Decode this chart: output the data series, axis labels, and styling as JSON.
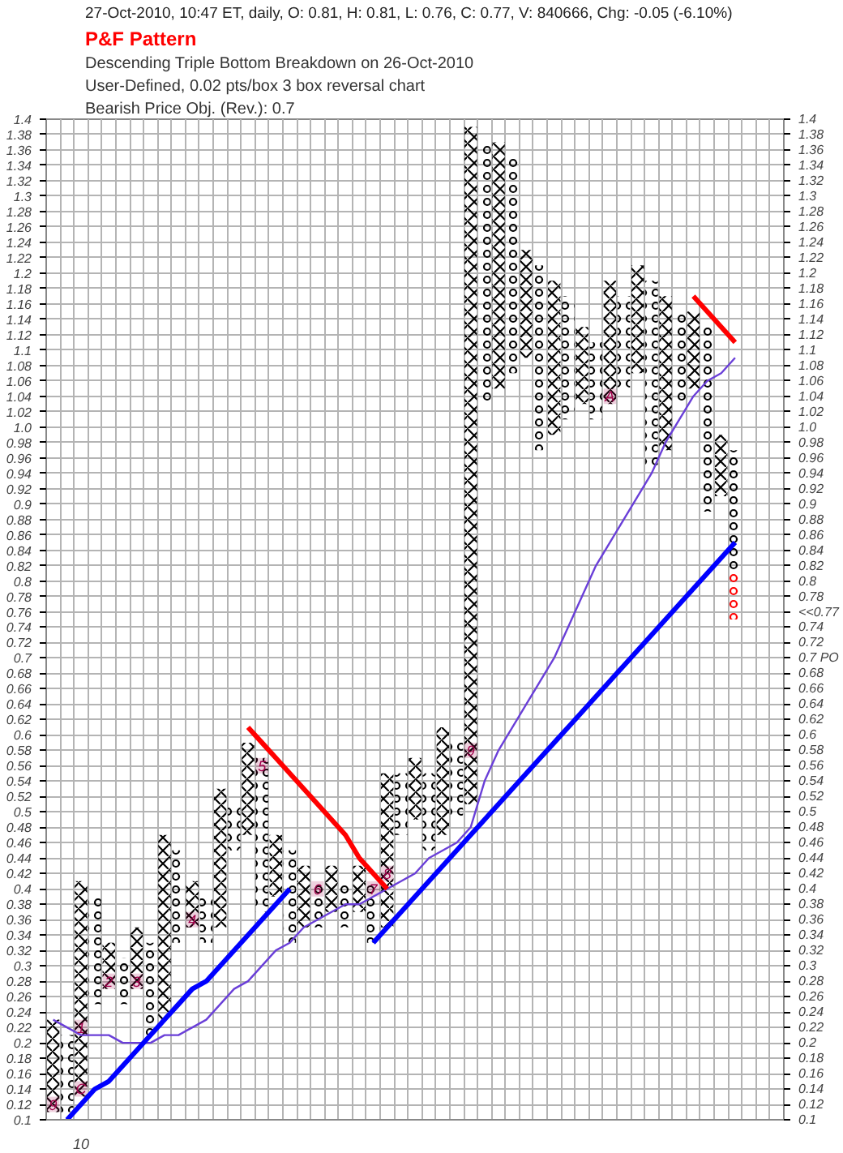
{
  "chart_data": {
    "type": "bar",
    "subtitle": "27-Oct-2010, 10:47 ET, daily, O: 0.81, H: 0.81, L: 0.76, C: 0.77, V: 840666, Chg: -0.05 (-6.10%)",
    "annotations": [
      "P&F Pattern",
      "Descending Triple Bottom Breakdown on 26-Oct-2010",
      "User-Defined, 0.02 pts/box 3 box reversal chart",
      "Bearish Price Obj. (Rev.): 0.7",
      {
        "text": "9",
        "y": 0.12
      },
      {
        "text": "C",
        "y": 0.14
      },
      {
        "text": "1",
        "y": 0.22
      },
      {
        "text": "2",
        "y": 0.28
      },
      {
        "text": "3",
        "y": 0.28
      },
      {
        "text": "4",
        "y": 0.36
      },
      {
        "text": "5",
        "y": 0.56
      },
      {
        "text": "6",
        "y": 0.4
      },
      {
        "text": "7",
        "y": 0.4
      },
      {
        "text": "8",
        "y": 0.42
      },
      {
        "text": "9",
        "y": 0.58
      },
      {
        "text": "A",
        "y": 1.04
      }
    ],
    "categories": [
      null,
      null,
      "10",
      null,
      null,
      null,
      null,
      null,
      null,
      null,
      null,
      null,
      null,
      null,
      null,
      null,
      null,
      null,
      null,
      null,
      null,
      null,
      null,
      null,
      null,
      null,
      null,
      null,
      null,
      null,
      null,
      null,
      null,
      null,
      null,
      null,
      null,
      null,
      null,
      null,
      null,
      null,
      null,
      null,
      null,
      null,
      null,
      null,
      null,
      null,
      null,
      null,
      null
    ],
    "ylim": [
      0.1,
      1.4
    ],
    "yticks": [
      0.1,
      0.12,
      0.14,
      0.16,
      0.18,
      0.2,
      0.22,
      0.24,
      0.26,
      0.28,
      0.3,
      0.32,
      0.34,
      0.36,
      0.38,
      0.4,
      0.42,
      0.44,
      0.46,
      0.48,
      0.5,
      0.52,
      0.54,
      0.56,
      0.58,
      0.6,
      0.62,
      0.64,
      0.66,
      0.68,
      0.7,
      0.72,
      0.74,
      0.76,
      0.78,
      0.8,
      0.82,
      0.84,
      0.86,
      0.88,
      0.9,
      0.92,
      0.94,
      0.96,
      0.98,
      {
        "value": 1,
        "label": "1.0"
      },
      1.02,
      1.04,
      1.06,
      1.08,
      1.1,
      1.12,
      1.14,
      1.16,
      1.18,
      1.2,
      1.22,
      1.24,
      1.26,
      1.28,
      1.3,
      1.32,
      1.34,
      1.36,
      1.38,
      1.4
    ],
    "y2lim": [
      0.1,
      1.4
    ],
    "y2ticks": [
      0.1,
      0.12,
      0.14,
      0.16,
      0.18,
      0.2,
      0.22,
      0.24,
      0.26,
      0.28,
      0.3,
      0.32,
      0.34,
      0.36,
      0.38,
      0.4,
      0.42,
      0.44,
      0.46,
      0.48,
      0.5,
      0.52,
      0.54,
      0.56,
      0.58,
      0.6,
      0.62,
      0.64,
      0.66,
      0.68,
      {
        "value": 0.7,
        "label": "0.7 PO"
      },
      0.72,
      0.74,
      {
        "value": 0.76,
        "label": "<<0.77"
      },
      0.78,
      0.8,
      0.82,
      0.84,
      0.86,
      0.88,
      0.9,
      0.92,
      0.94,
      0.96,
      0.98,
      {
        "value": 1,
        "label": "1.0"
      },
      1.02,
      1.04,
      1.06,
      1.08,
      1.1,
      1.12,
      1.14,
      1.16,
      1.18,
      1.2,
      1.22,
      1.24,
      1.26,
      1.28,
      1.3,
      1.32,
      1.34,
      1.36,
      1.38,
      1.4
    ],
    "grid": true,
    "series": [
      {
        "marker": "cross",
        "color": "#000000",
        "base": [
          0.11,
          null,
          0.13,
          null,
          0.27,
          null,
          0.27,
          null,
          0.23,
          null,
          0.35,
          null,
          0.35,
          null,
          0.47,
          null,
          0.39,
          null,
          0.35,
          null,
          0.37,
          null,
          0.37,
          null,
          0.35,
          null,
          0.49,
          null,
          0.47,
          null,
          0.51,
          null,
          1.05,
          null,
          1.09,
          null,
          0.99,
          null,
          1.03,
          null,
          1.03,
          null,
          1.07,
          null,
          0.97,
          null,
          1.05,
          null,
          0.91,
          null,
          null,
          null,
          null
        ],
        "values": [
          0.12,
          null,
          0.28,
          null,
          0.06,
          null,
          0.08,
          null,
          0.24,
          null,
          0.06,
          null,
          0.18,
          null,
          0.12,
          null,
          0.08,
          null,
          0.08,
          null,
          0.06,
          null,
          0.06,
          null,
          0.2,
          null,
          0.08,
          null,
          0.14,
          null,
          0.88,
          null,
          0.32,
          null,
          0.14,
          null,
          0.2,
          null,
          0.1,
          null,
          0.16,
          null,
          0.14,
          null,
          0.2,
          null,
          0.1,
          null,
          0.08,
          null,
          null,
          null,
          null
        ]
      },
      {
        "marker": "circle",
        "color": "#000000",
        "base": [
          null,
          0.11,
          null,
          0.25,
          null,
          0.25,
          null,
          0.21,
          null,
          0.33,
          null,
          0.33,
          null,
          0.45,
          null,
          0.37,
          null,
          0.33,
          null,
          0.35,
          null,
          0.35,
          null,
          0.33,
          null,
          0.47,
          null,
          0.45,
          null,
          0.49,
          null,
          1.03,
          null,
          1.07,
          null,
          0.97,
          null,
          1.01,
          null,
          1.01,
          null,
          1.05,
          null,
          0.95,
          null,
          1.03,
          null,
          0.89,
          null,
          0.81,
          null,
          null,
          null
        ],
        "values": [
          null,
          0.1,
          null,
          0.14,
          null,
          0.06,
          null,
          0.12,
          null,
          0.12,
          null,
          0.06,
          null,
          0.06,
          null,
          0.2,
          null,
          0.12,
          null,
          0.06,
          null,
          0.06,
          null,
          0.08,
          null,
          0.08,
          null,
          0.1,
          null,
          0.1,
          null,
          0.34,
          null,
          0.28,
          null,
          0.24,
          null,
          0.16,
          null,
          0.1,
          null,
          0.12,
          null,
          0.24,
          null,
          0.12,
          null,
          0.24,
          null,
          0.16,
          null,
          null,
          null
        ]
      },
      {
        "marker": "circle",
        "color": "#ff0000",
        "base": [
          null,
          null,
          null,
          null,
          null,
          null,
          null,
          null,
          null,
          null,
          null,
          null,
          null,
          null,
          null,
          null,
          null,
          null,
          null,
          null,
          null,
          null,
          null,
          null,
          null,
          null,
          null,
          null,
          null,
          null,
          null,
          null,
          null,
          null,
          null,
          null,
          null,
          null,
          null,
          null,
          null,
          null,
          null,
          null,
          null,
          null,
          null,
          null,
          null,
          0.75,
          null,
          null,
          null
        ],
        "values": [
          null,
          null,
          null,
          null,
          null,
          null,
          null,
          null,
          null,
          null,
          null,
          null,
          null,
          null,
          null,
          null,
          null,
          null,
          null,
          null,
          null,
          null,
          null,
          null,
          null,
          null,
          null,
          null,
          null,
          null,
          null,
          null,
          null,
          null,
          null,
          null,
          null,
          null,
          null,
          null,
          null,
          null,
          null,
          null,
          null,
          null,
          null,
          null,
          null,
          0.06,
          null,
          null,
          null
        ]
      },
      {
        "marker": "none",
        "color": "#a0004a",
        "base": [
          0.11,
          null,
          0.13,
          null,
          0.27,
          null,
          0.27,
          null,
          null,
          null,
          0.35,
          null,
          null,
          null,
          null,
          0.55,
          null,
          null,
          null,
          0.39,
          null,
          null,
          null,
          0.39,
          0.41,
          null,
          null,
          null,
          null,
          null,
          0.57,
          null,
          null,
          null,
          null,
          null,
          null,
          null,
          null,
          null,
          1.03,
          null,
          null,
          null,
          null,
          null,
          null,
          null,
          null,
          null,
          null,
          null,
          null
        ],
        "values": [
          0.02,
          null,
          0.02,
          null,
          0.02,
          null,
          0.02,
          null,
          null,
          null,
          0.02,
          null,
          null,
          null,
          null,
          0.02,
          null,
          null,
          null,
          0.02,
          null,
          null,
          null,
          0.02,
          0.02,
          null,
          null,
          null,
          null,
          null,
          0.02,
          null,
          null,
          null,
          null,
          null,
          null,
          null,
          null,
          null,
          0.02,
          null,
          null,
          null,
          null,
          null,
          null,
          null,
          null,
          null,
          null,
          null,
          null
        ]
      },
      {
        "marker": "none",
        "color": "#a0004a",
        "base": [
          null,
          null,
          0.21,
          null,
          null,
          null,
          null,
          null,
          null,
          null,
          null,
          null,
          null,
          null,
          null,
          null,
          null,
          null,
          null,
          null,
          null,
          null,
          null,
          null,
          null,
          null,
          null,
          null,
          null,
          null,
          null,
          null,
          null,
          null,
          null,
          null,
          null,
          null,
          null,
          null,
          null,
          null,
          null,
          null,
          null,
          null,
          null,
          null,
          null,
          null,
          null,
          null,
          null
        ],
        "values": [
          null,
          null,
          0.02,
          null,
          null,
          null,
          null,
          null,
          null,
          null,
          null,
          null,
          null,
          null,
          null,
          null,
          null,
          null,
          null,
          null,
          null,
          null,
          null,
          null,
          null,
          null,
          null,
          null,
          null,
          null,
          null,
          null,
          null,
          null,
          null,
          null,
          null,
          null,
          null,
          null,
          null,
          null,
          null,
          null,
          null,
          null,
          null,
          null,
          null,
          null,
          null,
          null,
          null
        ]
      },
      {
        "type": "line",
        "color": "#6a3fd8",
        "values": [
          0.23,
          0.22,
          0.21,
          0.21,
          0.21,
          0.2,
          0.2,
          0.2,
          0.21,
          0.21,
          0.22,
          0.23,
          0.25,
          0.27,
          0.28,
          0.3,
          0.32,
          0.33,
          0.35,
          0.36,
          0.37,
          0.38,
          0.38,
          0.39,
          0.4,
          0.41,
          0.42,
          0.44,
          0.45,
          0.46,
          0.48,
          0.54,
          0.58,
          0.61,
          0.64,
          0.67,
          0.7,
          0.74,
          0.78,
          0.82,
          0.85,
          0.88,
          0.91,
          0.94,
          0.98,
          1.01,
          1.04,
          1.06,
          1.07,
          1.09,
          null,
          null,
          null
        ]
      },
      {
        "type": "line",
        "color": "#0000ff",
        "values": [
          null,
          0.1,
          0.12,
          0.14,
          0.15,
          0.17,
          0.19,
          0.21,
          0.23,
          0.25,
          0.27,
          0.28,
          0.3,
          0.32,
          0.34,
          0.36,
          0.38,
          0.4,
          null,
          null,
          null,
          null,
          null,
          null,
          null,
          null,
          null,
          null,
          null,
          null,
          null,
          null,
          null,
          null,
          null,
          null,
          null,
          null,
          null,
          null,
          null,
          null,
          null,
          null,
          null,
          null,
          null,
          null,
          null,
          null,
          null,
          null,
          null
        ]
      },
      {
        "type": "line",
        "color": "#0000ff",
        "values": [
          null,
          null,
          null,
          null,
          null,
          null,
          null,
          null,
          null,
          null,
          null,
          null,
          null,
          null,
          null,
          null,
          null,
          null,
          null,
          null,
          null,
          null,
          null,
          0.33,
          0.35,
          0.37,
          0.39,
          0.41,
          0.43,
          0.45,
          0.47,
          0.49,
          0.51,
          0.53,
          0.55,
          0.57,
          0.59,
          0.61,
          0.63,
          0.65,
          0.67,
          0.69,
          0.71,
          0.73,
          0.75,
          0.77,
          0.79,
          0.81,
          0.83,
          0.85,
          null,
          null,
          null
        ]
      },
      {
        "type": "line",
        "color": "#ff0000",
        "values": [
          null,
          null,
          null,
          null,
          null,
          null,
          null,
          null,
          null,
          null,
          null,
          null,
          null,
          null,
          0.61,
          0.59,
          0.57,
          0.55,
          0.53,
          0.51,
          0.49,
          0.47,
          0.44,
          0.42,
          0.4,
          null,
          null,
          null,
          null,
          null,
          null,
          null,
          null,
          null,
          null,
          null,
          null,
          null,
          null,
          null,
          null,
          null,
          null,
          null,
          null,
          null,
          null,
          null,
          null,
          null,
          null,
          null,
          null
        ]
      },
      {
        "type": "line",
        "color": "#ff0000",
        "values": [
          null,
          null,
          null,
          null,
          null,
          null,
          null,
          null,
          null,
          null,
          null,
          null,
          null,
          null,
          null,
          null,
          null,
          null,
          null,
          null,
          null,
          null,
          null,
          null,
          null,
          null,
          null,
          null,
          null,
          null,
          null,
          null,
          null,
          null,
          null,
          null,
          null,
          null,
          null,
          null,
          null,
          null,
          null,
          null,
          null,
          null,
          1.17,
          1.15,
          1.13,
          1.11,
          null,
          null,
          null
        ]
      }
    ]
  }
}
